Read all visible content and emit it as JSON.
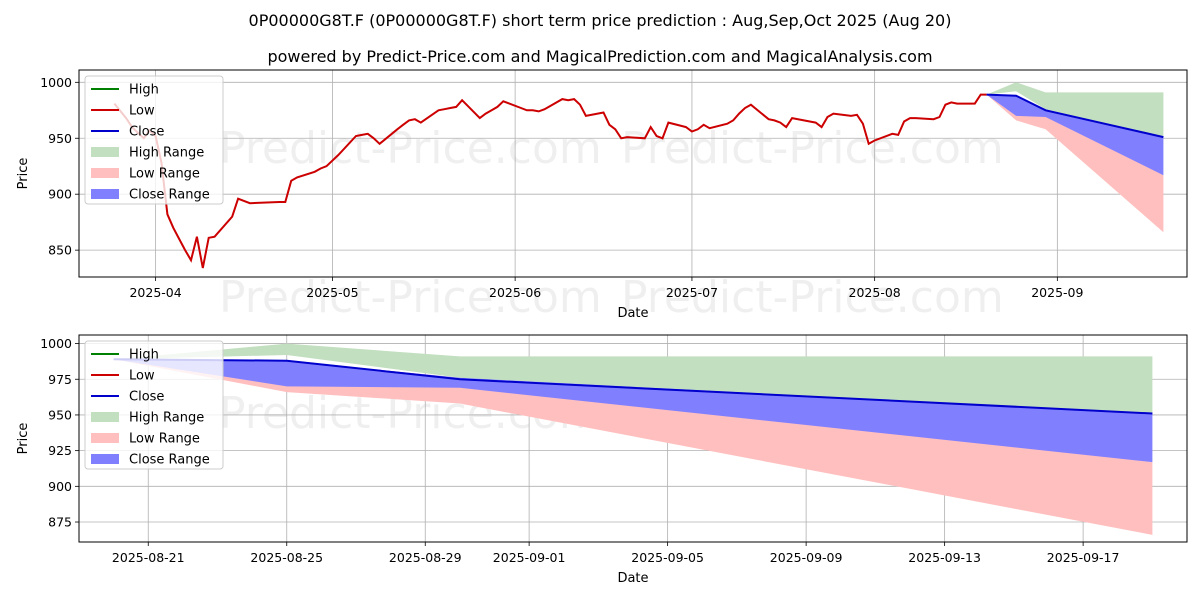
{
  "title_line1": "0P00000G8T.F (0P00000G8T.F) short term price prediction : Aug,Sep,Oct 2025 (Aug 20)",
  "title_line2": "powered by Predict-Price.com and MagicalPrediction.com and MagicalAnalysis.com",
  "watermark": "Predict-Price.com",
  "colors": {
    "high": "#008000",
    "low": "#cc0000",
    "close": "#0000cc",
    "high_range": "#c2dfbf",
    "low_range": "#ffbfbf",
    "close_range": "#8080ff"
  },
  "chart_data": [
    {
      "type": "line",
      "xlabel": "Date",
      "ylabel": "Price",
      "ylim": [
        826,
        1011
      ],
      "xlim": [
        "2025-03-19",
        "2025-09-23"
      ],
      "x_ticks": [
        "2025-04",
        "2025-05",
        "2025-06",
        "2025-07",
        "2025-08",
        "2025-09"
      ],
      "x_tick_dates": [
        "2025-04-01",
        "2025-05-01",
        "2025-06-01",
        "2025-07-01",
        "2025-08-01",
        "2025-09-01"
      ],
      "y_ticks": [
        850,
        900,
        950,
        1000
      ],
      "grid": true,
      "legend": "top-left",
      "legend_entries": [
        "High",
        "Low",
        "Close",
        "High Range",
        "Low Range",
        "Close Range"
      ],
      "history": {
        "name": "Low",
        "x": [
          "2025-03-25",
          "2025-03-27",
          "2025-03-28",
          "2025-03-30",
          "2025-03-31",
          "2025-04-01",
          "2025-04-02",
          "2025-04-03",
          "2025-04-04",
          "2025-04-05",
          "2025-04-06",
          "2025-04-07",
          "2025-04-08",
          "2025-04-09",
          "2025-04-10",
          "2025-04-11",
          "2025-04-14",
          "2025-04-15",
          "2025-04-17",
          "2025-04-22",
          "2025-04-23",
          "2025-04-24",
          "2025-04-25",
          "2025-04-28",
          "2025-04-29",
          "2025-04-30",
          "2025-05-02",
          "2025-05-05",
          "2025-05-06",
          "2025-05-07",
          "2025-05-08",
          "2025-05-09",
          "2025-05-12",
          "2025-05-13",
          "2025-05-14",
          "2025-05-15",
          "2025-05-16",
          "2025-05-19",
          "2025-05-20",
          "2025-05-21",
          "2025-05-22",
          "2025-05-23",
          "2025-05-26",
          "2025-05-27",
          "2025-05-28",
          "2025-05-29",
          "2025-05-30",
          "2025-06-02",
          "2025-06-03",
          "2025-06-04",
          "2025-06-05",
          "2025-06-06",
          "2025-06-09",
          "2025-06-10",
          "2025-06-11",
          "2025-06-12",
          "2025-06-13",
          "2025-06-16",
          "2025-06-17",
          "2025-06-18",
          "2025-06-19",
          "2025-06-20",
          "2025-06-23",
          "2025-06-24",
          "2025-06-25",
          "2025-06-26",
          "2025-06-27",
          "2025-06-30",
          "2025-07-01",
          "2025-07-02",
          "2025-07-03",
          "2025-07-04",
          "2025-07-07",
          "2025-07-08",
          "2025-07-09",
          "2025-07-10",
          "2025-07-11",
          "2025-07-14",
          "2025-07-15",
          "2025-07-16",
          "2025-07-17",
          "2025-07-18",
          "2025-07-21",
          "2025-07-22",
          "2025-07-23",
          "2025-07-24",
          "2025-07-25",
          "2025-07-28",
          "2025-07-29",
          "2025-07-30",
          "2025-07-31",
          "2025-08-01",
          "2025-08-04",
          "2025-08-05",
          "2025-08-06",
          "2025-08-07",
          "2025-08-08",
          "2025-08-11",
          "2025-08-12",
          "2025-08-13",
          "2025-08-14",
          "2025-08-15",
          "2025-08-18",
          "2025-08-19",
          "2025-08-20"
        ],
        "values": [
          981,
          968,
          960,
          950,
          957,
          952,
          928,
          882,
          870,
          860,
          850,
          841,
          862,
          834,
          861,
          862,
          880,
          896,
          892,
          893,
          893,
          912,
          915,
          920,
          923,
          925,
          935,
          952,
          953,
          954,
          950,
          945,
          958,
          962,
          966,
          967,
          964,
          975,
          976,
          977,
          978,
          984,
          968,
          972,
          975,
          978,
          983,
          977,
          975,
          975,
          974,
          976,
          985,
          984,
          985,
          980,
          970,
          973,
          962,
          958,
          950,
          951,
          950,
          960,
          952,
          950,
          964,
          960,
          956,
          958,
          962,
          959,
          963,
          966,
          972,
          977,
          980,
          967,
          966,
          964,
          960,
          968,
          965,
          964,
          960,
          969,
          972,
          970,
          971,
          963,
          945,
          948,
          954,
          953,
          965,
          968,
          968,
          967,
          969,
          980,
          982,
          981,
          981,
          989,
          989
        ]
      },
      "forecast": {
        "x": [
          "2025-08-20",
          "2025-08-25",
          "2025-08-30",
          "2025-09-19"
        ],
        "high_range": {
          "upper": [
            989,
            1000,
            991,
            991
          ],
          "lower": [
            989,
            992,
            976,
            951
          ]
        },
        "low_range": {
          "upper": [
            989,
            988,
            976,
            917
          ],
          "lower": [
            989,
            966,
            958,
            866
          ]
        },
        "close_range": {
          "upper": [
            989,
            988,
            976,
            951
          ],
          "lower": [
            989,
            970,
            969,
            917
          ]
        },
        "close": [
          989,
          988,
          975,
          951
        ]
      }
    },
    {
      "type": "line",
      "xlabel": "Date",
      "ylabel": "Price",
      "ylim": [
        861,
        1006
      ],
      "xlim": [
        "2025-08-19",
        "2025-09-20"
      ],
      "x_ticks": [
        "2025-08-21",
        "2025-08-25",
        "2025-08-29",
        "2025-09-01",
        "2025-09-05",
        "2025-09-09",
        "2025-09-13",
        "2025-09-17"
      ],
      "x_tick_dates": [
        "2025-08-21",
        "2025-08-25",
        "2025-08-29",
        "2025-09-01",
        "2025-09-05",
        "2025-09-09",
        "2025-09-13",
        "2025-09-17"
      ],
      "y_ticks": [
        875,
        900,
        925,
        950,
        975,
        1000
      ],
      "grid": true,
      "legend": "top-left",
      "legend_entries": [
        "High",
        "Low",
        "Close",
        "High Range",
        "Low Range",
        "Close Range"
      ],
      "forecast": {
        "x": [
          "2025-08-20",
          "2025-08-25",
          "2025-08-30",
          "2025-09-19"
        ],
        "high_range": {
          "upper": [
            989,
            1000,
            991,
            991
          ],
          "lower": [
            989,
            992,
            976,
            951
          ]
        },
        "low_range": {
          "upper": [
            989,
            988,
            976,
            917
          ],
          "lower": [
            989,
            966,
            958,
            866
          ]
        },
        "close_range": {
          "upper": [
            989,
            988,
            976,
            951
          ],
          "lower": [
            989,
            970,
            969,
            917
          ]
        },
        "close": [
          989,
          988,
          975,
          951
        ]
      }
    }
  ]
}
